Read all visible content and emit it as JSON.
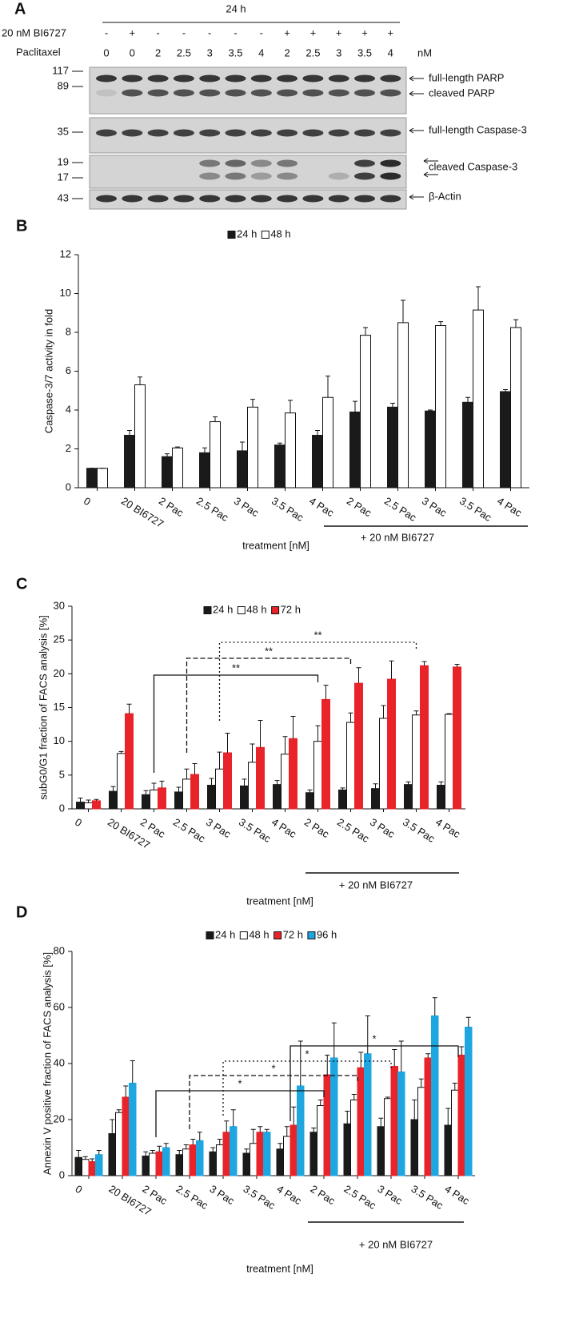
{
  "panel_a": {
    "panel": "A",
    "time": "24 h",
    "row_labels": [
      "20 nM BI6727",
      "Paclitaxel"
    ],
    "bi6727": [
      "-",
      "+",
      "-",
      "-",
      "-",
      "-",
      "-",
      "+",
      "+",
      "+",
      "+",
      "+"
    ],
    "paclitaxel": [
      "0",
      "0",
      "2",
      "2.5",
      "3",
      "3.5",
      "4",
      "2",
      "2.5",
      "3",
      "3.5",
      "4"
    ],
    "unit": "nM",
    "markers": [
      "117",
      "89",
      "35",
      "19",
      "17",
      "43"
    ],
    "bands": [
      "full-length PARP",
      "cleaved PARP",
      "full-length Caspase-3",
      "cleaved Caspase-3",
      "β-Actin"
    ]
  },
  "chart_data": [
    {
      "type": "bar",
      "panel": "B",
      "y_label": "Caspase-3/7 activity in fold",
      "x_label": "treatment [nM]",
      "group_label": "+ 20 nM BI6727",
      "categories": [
        "0",
        "20 BI6727",
        "2 Pac",
        "2.5 Pac",
        "3 Pac",
        "3.5 Pac",
        "4 Pac",
        "2 Pac",
        "2.5 Pac",
        "3 Pac",
        "3.5 Pac",
        "4 Pac"
      ],
      "series": [
        {
          "name": "24 h",
          "color": "#1a1a1a",
          "values": [
            1,
            2.7,
            1.6,
            1.8,
            1.9,
            2.2,
            2.7,
            3.9,
            4.15,
            3.95,
            4.4,
            4.95
          ],
          "errors": [
            0,
            0.25,
            0.15,
            0.25,
            0.45,
            0.1,
            0.25,
            0.55,
            0.2,
            0.05,
            0.25,
            0.1
          ]
        },
        {
          "name": "48 h",
          "color": "#ffffff",
          "values": [
            1,
            5.3,
            2.05,
            3.4,
            4.15,
            3.85,
            4.65,
            7.85,
            8.5,
            8.35,
            9.15,
            8.25
          ],
          "errors": [
            0,
            0.4,
            0.05,
            0.25,
            0.4,
            0.65,
            1.1,
            0.4,
            1.15,
            0.2,
            1.2,
            0.4
          ]
        }
      ],
      "ylim": [
        0,
        12
      ],
      "yticks": [
        0,
        2,
        4,
        6,
        8,
        10,
        12
      ]
    },
    {
      "type": "bar",
      "panel": "C",
      "y_label": "subG0/G1 fraction of FACS analysis [%]",
      "x_label": "treatment [nM]",
      "group_label": "+ 20 nM BI6727",
      "categories": [
        "0",
        "20 BI6727",
        "2 Pac",
        "2.5 Pac",
        "3 Pac",
        "3.5 Pac",
        "4 Pac",
        "2 Pac",
        "2.5 Pac",
        "3 Pac",
        "3.5 Pac",
        "4 Pac"
      ],
      "series": [
        {
          "name": "24 h",
          "color": "#1a1a1a",
          "values": [
            1.0,
            2.6,
            2.1,
            2.5,
            3.5,
            3.4,
            3.6,
            2.4,
            2.8,
            3.0,
            3.6,
            3.5
          ],
          "errors": [
            0.6,
            0.7,
            0.6,
            0.7,
            1.0,
            1.0,
            0.6,
            0.4,
            0.3,
            0.7,
            0.4,
            0.5
          ]
        },
        {
          "name": "48 h",
          "color": "#ffffff",
          "values": [
            0.9,
            8.2,
            2.8,
            4.4,
            5.9,
            6.9,
            8.1,
            10.0,
            12.8,
            13.4,
            13.9,
            14.0
          ],
          "errors": [
            0.4,
            0.3,
            1.0,
            1.5,
            2.5,
            2.7,
            2.6,
            2.3,
            1.4,
            1.9,
            0.6,
            0.1
          ]
        },
        {
          "name": "72 h",
          "color": "#e8232a",
          "values": [
            1.2,
            14.1,
            3.1,
            5.1,
            8.3,
            9.1,
            10.4,
            16.2,
            18.6,
            19.2,
            21.2,
            21.0
          ],
          "errors": [
            0.2,
            1.4,
            1.0,
            1.6,
            2.9,
            4.0,
            3.3,
            2.1,
            2.3,
            2.7,
            0.6,
            0.4
          ]
        }
      ],
      "ylim": [
        0,
        30
      ],
      "yticks": [
        0,
        5,
        10,
        15,
        20,
        25,
        30
      ],
      "significance": [
        "**",
        "**",
        "**"
      ]
    },
    {
      "type": "bar",
      "panel": "D",
      "y_label": "Annexin V positive fraction of FACS analysis [%]",
      "x_label": "treatment [nM]",
      "group_label": "+ 20 nM BI6727",
      "categories": [
        "0",
        "20 BI6727",
        "2 Pac",
        "2.5 Pac",
        "3 Pac",
        "3.5 Pac",
        "4 Pac",
        "2 Pac",
        "2.5 Pac",
        "3 Pac",
        "3.5 Pac",
        "4 Pac"
      ],
      "series": [
        {
          "name": "24 h",
          "color": "#1a1a1a",
          "values": [
            6.5,
            15,
            7,
            7.5,
            8.5,
            8,
            9.5,
            15.5,
            18.5,
            17.5,
            20,
            18
          ],
          "errors": [
            2.5,
            5,
            1.5,
            1.5,
            1.5,
            1.5,
            2,
            1.5,
            4.5,
            3,
            7,
            6
          ]
        },
        {
          "name": "48 h",
          "color": "#ffffff",
          "values": [
            5.8,
            22.5,
            8,
            9.5,
            11,
            11.5,
            14,
            25,
            27,
            27.5,
            31.5,
            30.5
          ],
          "errors": [
            1,
            1,
            1,
            1.5,
            2,
            5,
            3.5,
            2,
            2,
            0.5,
            3,
            2.5
          ]
        },
        {
          "name": "72 h",
          "color": "#e8232a",
          "values": [
            5,
            28,
            8.5,
            11,
            15.5,
            15.5,
            18,
            36,
            38.5,
            39,
            42,
            43
          ],
          "errors": [
            1,
            4,
            2,
            2,
            4,
            2,
            6.5,
            7,
            5.5,
            6,
            1.5,
            3
          ]
        },
        {
          "name": "96 h",
          "color": "#1ea6e0",
          "values": [
            7.5,
            33,
            10,
            12.5,
            17.5,
            15.5,
            32,
            42,
            43.5,
            37,
            57,
            53
          ],
          "errors": [
            1.5,
            8,
            1.5,
            3,
            6,
            1,
            16,
            12.5,
            13.5,
            11,
            6.5,
            3.5
          ]
        }
      ],
      "ylim": [
        0,
        80
      ],
      "yticks": [
        0,
        20,
        40,
        60,
        80
      ],
      "significance": [
        "*",
        "*",
        "*",
        "*"
      ]
    }
  ]
}
